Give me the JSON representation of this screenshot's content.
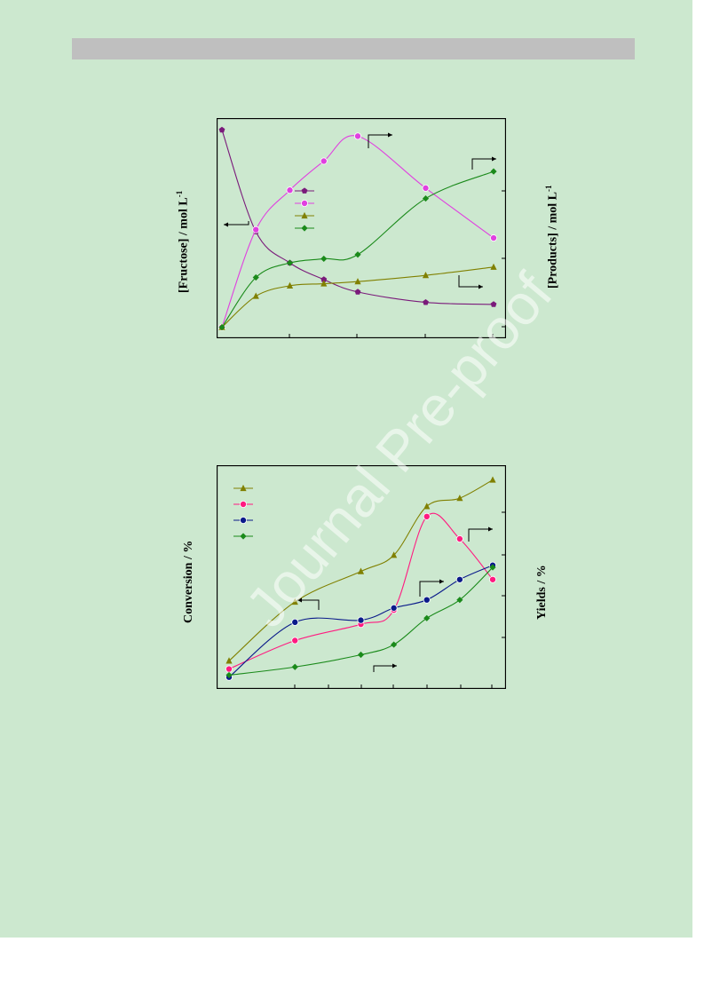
{
  "header": {
    "color": "#bfbfbf"
  },
  "watermark": {
    "text": "Journal Pre-proof"
  },
  "labels": {
    "fructose_main": "[Fructose] / mol L",
    "fructose_sup": "-1",
    "products_main": "[Products] / mol L",
    "products_sup": "-1",
    "conversion": "Conversion / %",
    "yields": "Yields / %"
  },
  "chart_data": [
    {
      "type": "line",
      "x": [
        0,
        0.5,
        1,
        1.5,
        2,
        3,
        4
      ],
      "xlim": [
        0,
        4
      ],
      "ylim": [
        0,
        10
      ],
      "series": [
        {
          "color": "#7a1a7a",
          "marker": "pentagon",
          "values": [
            9.6,
            4.7,
            3.2,
            2.4,
            1.8,
            1.3,
            1.2
          ]
        },
        {
          "color": "#e040e0",
          "marker": "circle",
          "values": [
            0.1,
            4.8,
            6.7,
            8.1,
            9.3,
            6.8,
            4.4
          ]
        },
        {
          "color": "#808000",
          "marker": "triangle",
          "values": [
            0.1,
            1.6,
            2.1,
            2.2,
            2.3,
            2.6,
            3.0
          ]
        },
        {
          "color": "#1a8a1a",
          "marker": "diamond",
          "values": [
            0.1,
            2.5,
            3.2,
            3.4,
            3.6,
            6.3,
            7.6
          ]
        }
      ]
    },
    {
      "type": "line",
      "x": [
        0,
        1,
        2,
        2.5,
        3,
        3.5,
        4
      ],
      "xlim": [
        0,
        4
      ],
      "ylim": [
        0,
        10
      ],
      "series": [
        {
          "color": "#808000",
          "marker": "triangle",
          "values": [
            0.9,
            3.8,
            5.3,
            6.1,
            8.5,
            8.9,
            9.8
          ]
        },
        {
          "color": "#ff1a80",
          "marker": "circle",
          "values": [
            0.5,
            1.9,
            2.7,
            3.4,
            8.0,
            6.9,
            4.9
          ]
        },
        {
          "color": "#0a1a8a",
          "marker": "circle",
          "values": [
            0.1,
            2.8,
            2.9,
            3.5,
            3.9,
            4.9,
            5.6
          ]
        },
        {
          "color": "#1a8a1a",
          "marker": "diamond",
          "values": [
            0.2,
            0.6,
            1.2,
            1.7,
            3.0,
            3.9,
            5.5
          ]
        }
      ]
    }
  ]
}
